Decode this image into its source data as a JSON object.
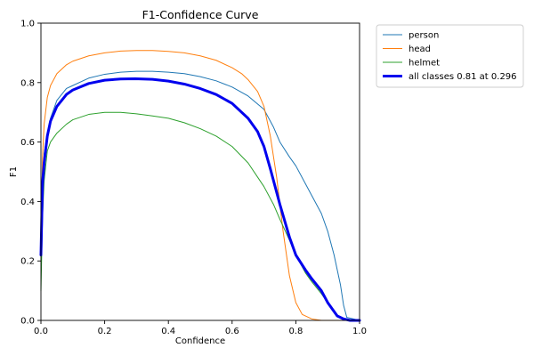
{
  "chart_data": {
    "type": "line",
    "title": "F1-Confidence Curve",
    "xlabel": "Confidence",
    "ylabel": "F1",
    "xlim": [
      0,
      1
    ],
    "ylim": [
      0,
      1
    ],
    "x_ticks": [
      "0.0",
      "0.2",
      "0.4",
      "0.6",
      "0.8",
      "1.0"
    ],
    "y_ticks": [
      "0.0",
      "0.2",
      "0.4",
      "0.6",
      "0.8",
      "1.0"
    ],
    "grid": false,
    "legend_position": "outside-top-right",
    "series": [
      {
        "name": "person",
        "color": "#1f77b4",
        "emphasis": false,
        "x": [
          0.0,
          0.005,
          0.01,
          0.02,
          0.03,
          0.05,
          0.08,
          0.1,
          0.15,
          0.2,
          0.25,
          0.3,
          0.35,
          0.4,
          0.45,
          0.5,
          0.55,
          0.6,
          0.65,
          0.7,
          0.73,
          0.75,
          0.78,
          0.8,
          0.83,
          0.85,
          0.88,
          0.9,
          0.92,
          0.93,
          0.94,
          0.95,
          0.96,
          1.0
        ],
        "y": [
          0.27,
          0.46,
          0.56,
          0.63,
          0.68,
          0.74,
          0.78,
          0.79,
          0.815,
          0.828,
          0.835,
          0.838,
          0.838,
          0.835,
          0.83,
          0.82,
          0.806,
          0.785,
          0.755,
          0.71,
          0.65,
          0.6,
          0.55,
          0.52,
          0.46,
          0.42,
          0.36,
          0.3,
          0.22,
          0.17,
          0.12,
          0.05,
          0.01,
          0.0
        ]
      },
      {
        "name": "head",
        "color": "#ff7f0e",
        "emphasis": false,
        "x": [
          0.0,
          0.005,
          0.01,
          0.02,
          0.03,
          0.05,
          0.08,
          0.1,
          0.15,
          0.2,
          0.25,
          0.3,
          0.35,
          0.4,
          0.45,
          0.5,
          0.55,
          0.6,
          0.63,
          0.65,
          0.68,
          0.7,
          0.72,
          0.74,
          0.76,
          0.78,
          0.8,
          0.82,
          0.85,
          0.88,
          0.9,
          1.0
        ],
        "y": [
          0.27,
          0.55,
          0.66,
          0.75,
          0.79,
          0.83,
          0.86,
          0.872,
          0.89,
          0.9,
          0.906,
          0.908,
          0.908,
          0.905,
          0.9,
          0.89,
          0.875,
          0.85,
          0.83,
          0.81,
          0.77,
          0.72,
          0.62,
          0.48,
          0.3,
          0.15,
          0.06,
          0.02,
          0.005,
          0.0,
          0.0,
          0.0
        ]
      },
      {
        "name": "helmet",
        "color": "#2ca02c",
        "emphasis": false,
        "x": [
          0.0,
          0.005,
          0.01,
          0.02,
          0.03,
          0.05,
          0.08,
          0.1,
          0.15,
          0.2,
          0.25,
          0.3,
          0.35,
          0.4,
          0.45,
          0.5,
          0.55,
          0.6,
          0.65,
          0.7,
          0.73,
          0.75,
          0.78,
          0.8,
          0.83,
          0.85,
          0.88,
          0.9,
          0.92,
          0.93,
          0.95,
          0.97,
          1.0
        ],
        "y": [
          0.1,
          0.35,
          0.47,
          0.57,
          0.6,
          0.63,
          0.66,
          0.675,
          0.693,
          0.7,
          0.7,
          0.695,
          0.688,
          0.68,
          0.665,
          0.645,
          0.62,
          0.585,
          0.53,
          0.45,
          0.39,
          0.34,
          0.27,
          0.22,
          0.16,
          0.13,
          0.09,
          0.06,
          0.03,
          0.015,
          0.005,
          0.0,
          0.0
        ]
      },
      {
        "name": "all classes 0.81 at 0.296",
        "color": "#0000ee",
        "emphasis": true,
        "x": [
          0.0,
          0.005,
          0.01,
          0.02,
          0.03,
          0.05,
          0.08,
          0.1,
          0.15,
          0.2,
          0.25,
          0.296,
          0.35,
          0.4,
          0.45,
          0.5,
          0.55,
          0.6,
          0.65,
          0.68,
          0.7,
          0.72,
          0.75,
          0.78,
          0.8,
          0.83,
          0.85,
          0.88,
          0.9,
          0.92,
          0.93,
          0.95,
          0.97,
          1.0
        ],
        "y": [
          0.22,
          0.46,
          0.53,
          0.62,
          0.67,
          0.72,
          0.76,
          0.775,
          0.797,
          0.808,
          0.812,
          0.813,
          0.811,
          0.805,
          0.795,
          0.78,
          0.76,
          0.73,
          0.68,
          0.635,
          0.585,
          0.51,
          0.39,
          0.28,
          0.22,
          0.17,
          0.14,
          0.1,
          0.06,
          0.03,
          0.015,
          0.005,
          0.0,
          0.0
        ]
      }
    ]
  }
}
